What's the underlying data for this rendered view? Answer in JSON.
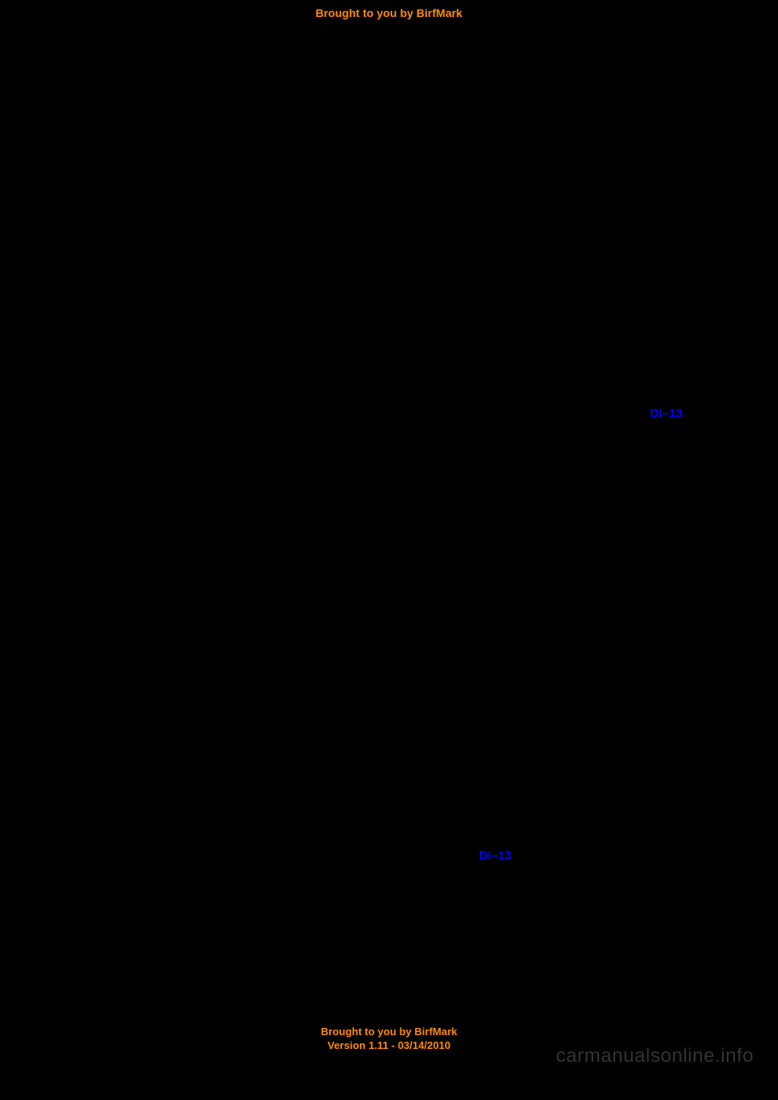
{
  "topBanner": "Brought to you by BirfMark",
  "link1": "DI–13",
  "link2": "DI–13",
  "watermark": "carmanualsonline.info",
  "bottomBanner": {
    "line1": "Brought to you by BirfMark",
    "line2": "Version 1.11 - 03/14/2010"
  }
}
